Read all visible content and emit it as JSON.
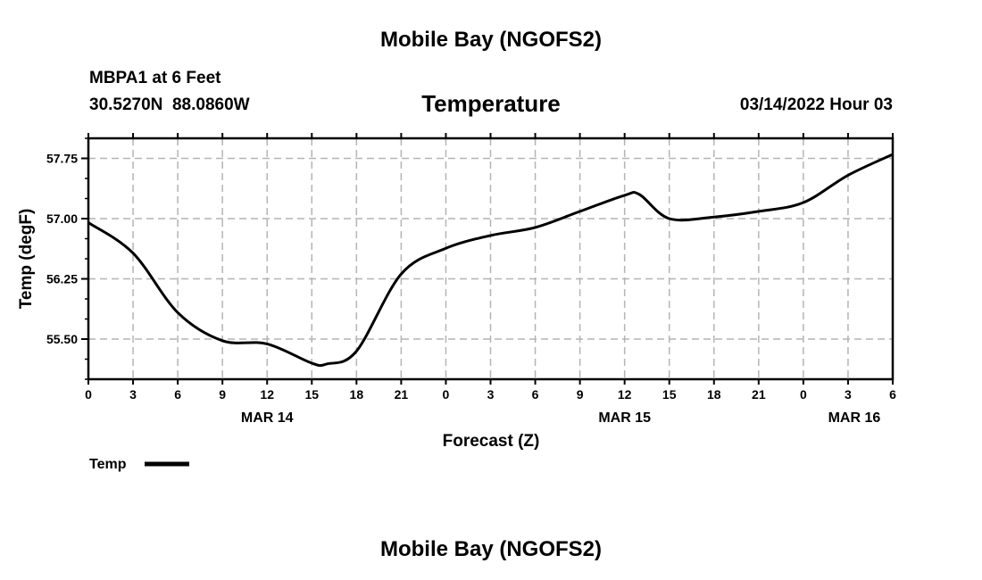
{
  "header": {
    "title": "Mobile Bay (NGOFS2)",
    "station": "MBPA1 at 6 Feet",
    "coords": "30.5270N  88.0860W",
    "variable": "Temperature",
    "datetime": "03/14/2022 Hour 03",
    "footer_title": "Mobile Bay (NGOFS2)"
  },
  "chart_data": {
    "type": "line",
    "title": "Temperature",
    "xlabel": "Forecast (Z)",
    "ylabel": "Temp (degF)",
    "xlim": [
      0,
      54
    ],
    "ylim": [
      55.0,
      58.0
    ],
    "grid": true,
    "x_ticks": [
      0,
      3,
      6,
      9,
      12,
      15,
      18,
      21,
      24,
      27,
      30,
      33,
      36,
      39,
      42,
      45,
      48,
      51,
      54
    ],
    "x_tick_labels": [
      "0",
      "3",
      "6",
      "9",
      "12",
      "15",
      "18",
      "21",
      "0",
      "3",
      "6",
      "9",
      "12",
      "15",
      "18",
      "21",
      "0",
      "3",
      "6"
    ],
    "date_labels": [
      {
        "x": 12,
        "label": "MAR 14"
      },
      {
        "x": 36,
        "label": "MAR 15"
      },
      {
        "x": 51,
        "label": "MAR 16"
      }
    ],
    "y_ticks": [
      57.75,
      57.0,
      56.25,
      55.5
    ],
    "y_tick_labels": [
      "57.75",
      "57.00",
      "56.25",
      "55.50"
    ],
    "legend": {
      "placement": "bottom-left",
      "entries": [
        "Temp"
      ]
    },
    "series": [
      {
        "name": "Temp",
        "color": "#000000",
        "x": [
          0,
          3,
          6,
          9,
          12,
          15,
          16,
          18,
          21,
          24,
          27,
          30,
          33,
          36,
          37,
          39,
          42,
          45,
          48,
          51,
          54
        ],
        "values": [
          56.95,
          56.57,
          55.83,
          55.48,
          55.44,
          55.2,
          55.19,
          55.35,
          56.31,
          56.63,
          56.79,
          56.89,
          57.09,
          57.29,
          57.3,
          57.0,
          57.02,
          57.09,
          57.2,
          57.54,
          57.8
        ]
      }
    ]
  }
}
